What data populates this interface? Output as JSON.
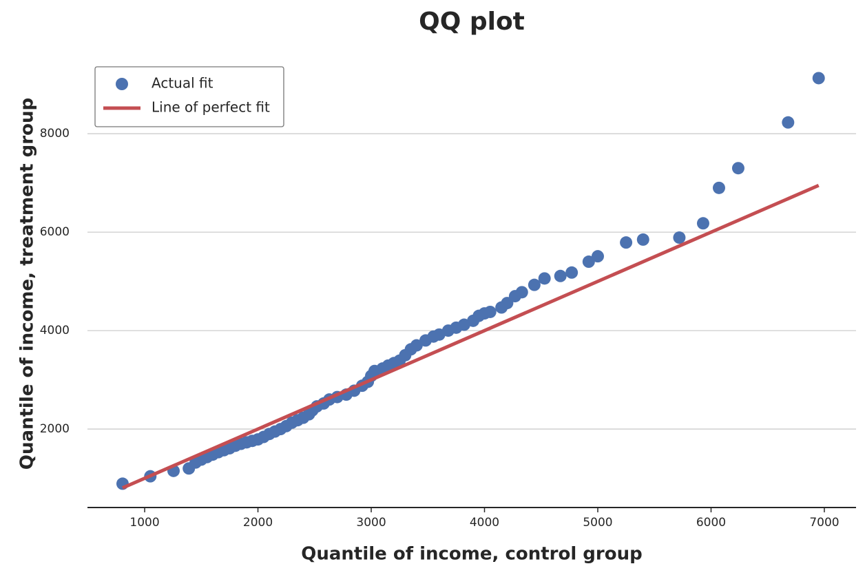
{
  "chart_data": {
    "type": "scatter",
    "title": "QQ plot",
    "x_label": "Quantile of income, control group",
    "y_label": "Quantile of income, treatment group",
    "xlim": [
      495,
      7280
    ],
    "ylim": [
      406,
      9360
    ],
    "xticks": [
      1000,
      2000,
      3000,
      4000,
      5000,
      6000,
      7000
    ],
    "yticks": [
      2000,
      4000,
      6000,
      8000
    ],
    "grid": true,
    "legend": "upper-left",
    "series": [
      {
        "name": "Actual fit",
        "color": "#4c72b0",
        "kind": "scatter",
        "x": [
          805,
          1050,
          1255,
          1390,
          1450,
          1500,
          1550,
          1600,
          1650,
          1700,
          1750,
          1800,
          1850,
          1900,
          1950,
          2000,
          2050,
          2100,
          2150,
          2200,
          2250,
          2300,
          2350,
          2400,
          2450,
          2480,
          2520,
          2580,
          2630,
          2700,
          2780,
          2850,
          2920,
          2970,
          3000,
          3030,
          3100,
          3150,
          3200,
          3250,
          3300,
          3350,
          3400,
          3480,
          3550,
          3600,
          3680,
          3750,
          3820,
          3900,
          3950,
          4000,
          4050,
          4150,
          4200,
          4270,
          4330,
          4440,
          4530,
          4670,
          4770,
          4920,
          5000,
          5250,
          5400,
          5720,
          5930,
          6070,
          6240,
          6680,
          6950
        ],
        "values": [
          890,
          1040,
          1150,
          1200,
          1320,
          1380,
          1430,
          1480,
          1530,
          1570,
          1610,
          1660,
          1700,
          1730,
          1760,
          1790,
          1840,
          1900,
          1950,
          2000,
          2060,
          2130,
          2180,
          2230,
          2300,
          2380,
          2460,
          2520,
          2600,
          2650,
          2700,
          2780,
          2880,
          2960,
          3080,
          3180,
          3230,
          3290,
          3340,
          3390,
          3500,
          3620,
          3700,
          3800,
          3880,
          3920,
          4000,
          4060,
          4120,
          4200,
          4300,
          4350,
          4380,
          4470,
          4560,
          4700,
          4780,
          4930,
          5060,
          5110,
          5180,
          5400,
          5510,
          5790,
          5850,
          5890,
          6180,
          6900,
          7300,
          8230,
          9130
        ]
      },
      {
        "name": "Line of perfect fit",
        "color": "#c44e52",
        "kind": "line",
        "x": [
          805,
          6950
        ],
        "values": [
          805,
          6950
        ]
      }
    ]
  }
}
